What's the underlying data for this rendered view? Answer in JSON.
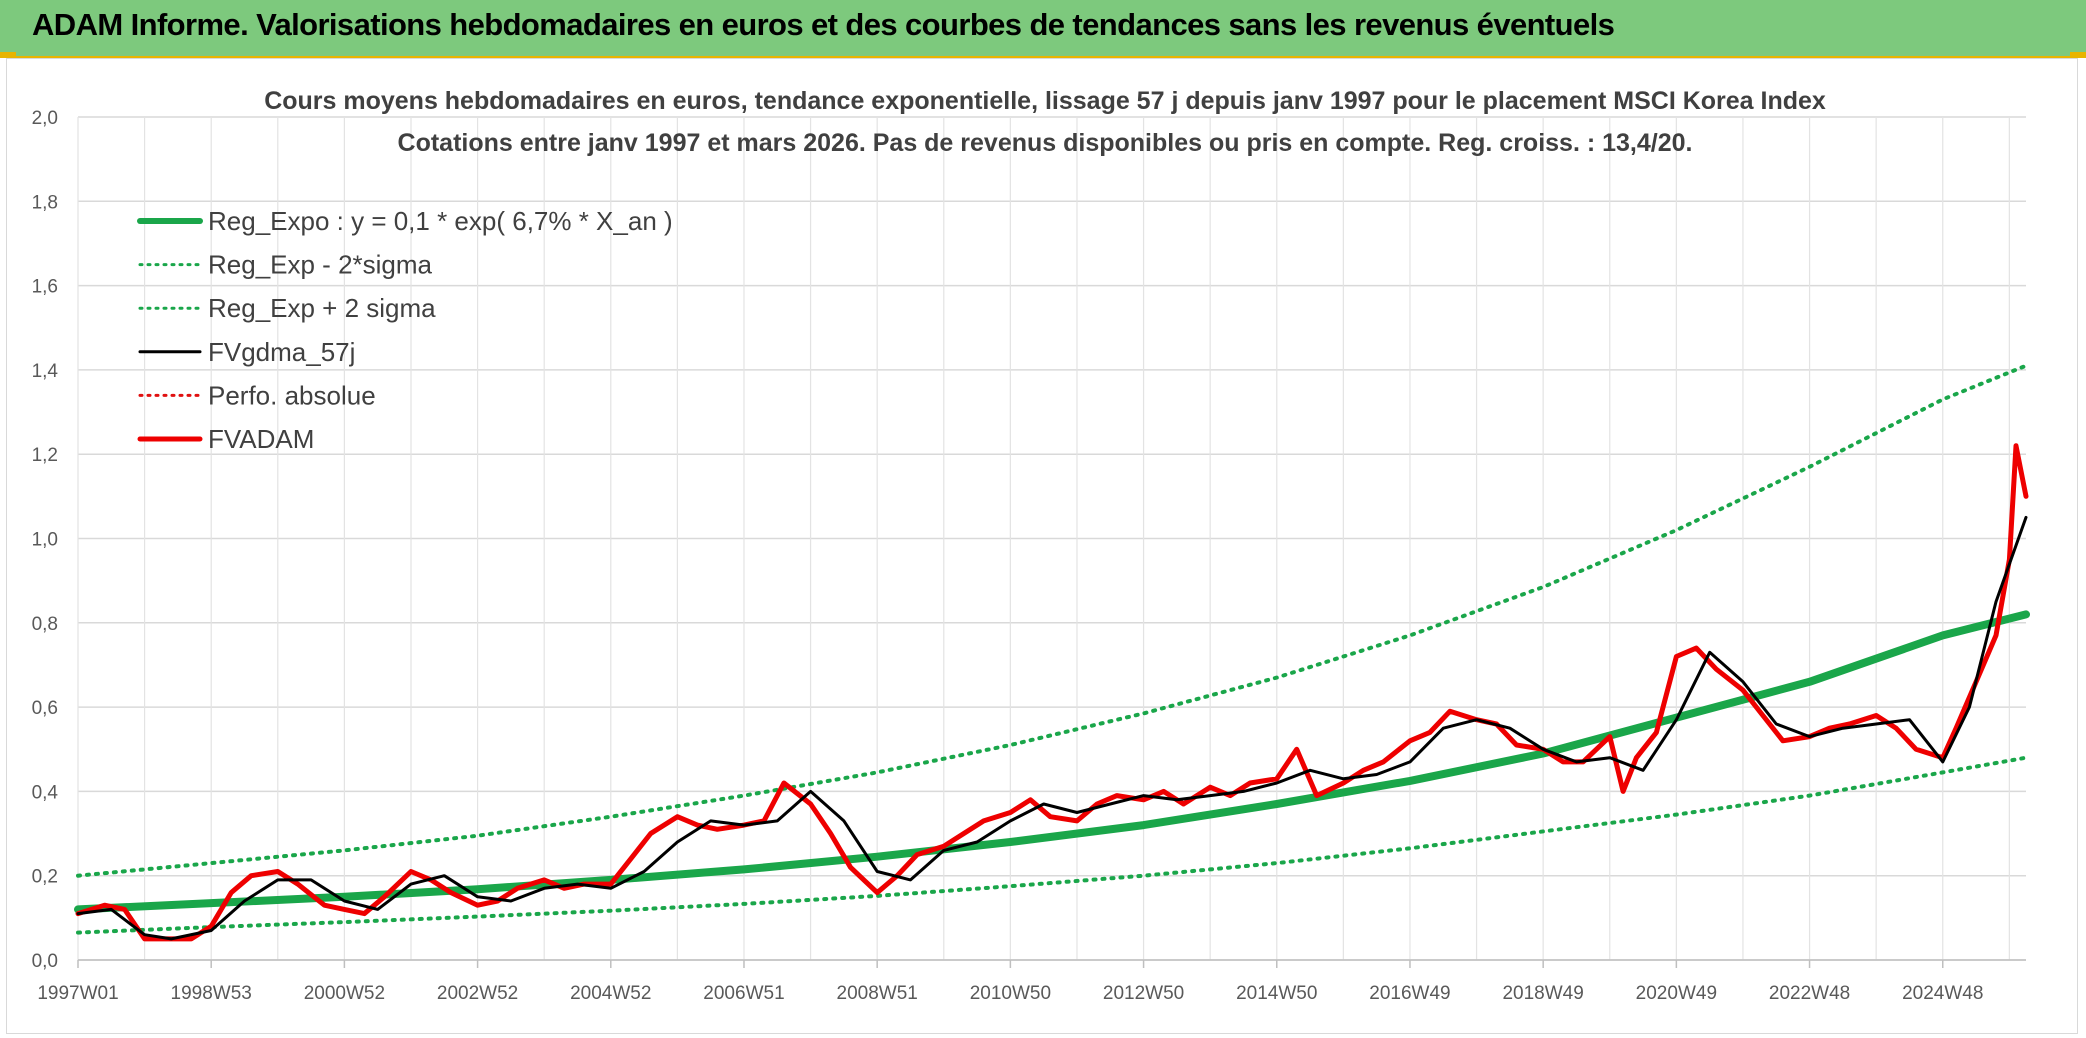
{
  "header": {
    "title": "ADAM Informe. Valorisations hebdomadaires en euros et des courbes de tendances sans les revenus éventuels",
    "background": "#7dc97d",
    "accent": "#e8b400"
  },
  "chart_data": {
    "type": "line",
    "title": "Cours moyens hebdomadaires en euros, tendance exponentielle, lissage 57 j depuis janv 1997 pour le placement MSCI Korea Index",
    "subtitle": "Cotations entre janv 1997 et mars 2026. Pas de revenus disponibles ou pris en compte. Reg. croiss. : 13,4/20.",
    "xlabel": "",
    "ylabel": "",
    "ylim": [
      0,
      2.0
    ],
    "xlim": [
      1997.0,
      2026.25
    ],
    "y_ticks": [
      "0,0",
      "0,2",
      "0,4",
      "0,6",
      "0,8",
      "1,0",
      "1,2",
      "1,4",
      "1,6",
      "1,8",
      "2,0"
    ],
    "x_ticks": [
      {
        "label": "1997W01",
        "x": 1997.0
      },
      {
        "label": "1998W53",
        "x": 1999.0
      },
      {
        "label": "2000W52",
        "x": 2001.0
      },
      {
        "label": "2002W52",
        "x": 2003.0
      },
      {
        "label": "2004W52",
        "x": 2005.0
      },
      {
        "label": "2006W51",
        "x": 2007.0
      },
      {
        "label": "2008W51",
        "x": 2009.0
      },
      {
        "label": "2010W50",
        "x": 2011.0
      },
      {
        "label": "2012W50",
        "x": 2013.0
      },
      {
        "label": "2014W50",
        "x": 2015.0
      },
      {
        "label": "2016W49",
        "x": 2017.0
      },
      {
        "label": "2018W49",
        "x": 2019.0
      },
      {
        "label": "2020W49",
        "x": 2021.0
      },
      {
        "label": "2022W48",
        "x": 2023.0
      },
      {
        "label": "2024W48",
        "x": 2025.0
      }
    ],
    "grid": true,
    "legend_position": "top-left",
    "series": [
      {
        "name": "Reg_Expo : y = 0,1 * exp( 6,7% *  X_an )",
        "color": "#1aa64a",
        "style": "solid",
        "width": 8,
        "x": [
          1997,
          1999,
          2001,
          2003,
          2005,
          2007,
          2009,
          2011,
          2013,
          2015,
          2017,
          2019,
          2021,
          2023,
          2025,
          2026.25
        ],
        "y": [
          0.12,
          0.135,
          0.15,
          0.168,
          0.19,
          0.215,
          0.245,
          0.28,
          0.32,
          0.37,
          0.425,
          0.49,
          0.575,
          0.66,
          0.77,
          0.82
        ]
      },
      {
        "name": "Reg_Exp - 2*sigma",
        "color": "#1aa64a",
        "style": "dotted",
        "width": 4,
        "x": [
          1997,
          1999,
          2001,
          2003,
          2005,
          2007,
          2009,
          2011,
          2013,
          2015,
          2017,
          2019,
          2021,
          2023,
          2025,
          2026.25
        ],
        "y": [
          0.065,
          0.078,
          0.09,
          0.103,
          0.117,
          0.133,
          0.152,
          0.175,
          0.2,
          0.23,
          0.265,
          0.305,
          0.345,
          0.39,
          0.445,
          0.48
        ]
      },
      {
        "name": "Reg_Exp + 2 sigma",
        "color": "#1aa64a",
        "style": "dotted",
        "width": 4,
        "x": [
          1997,
          1999,
          2001,
          2003,
          2005,
          2007,
          2009,
          2011,
          2013,
          2015,
          2017,
          2019,
          2021,
          2023,
          2025,
          2026.25
        ],
        "y": [
          0.2,
          0.23,
          0.26,
          0.295,
          0.34,
          0.39,
          0.445,
          0.51,
          0.585,
          0.67,
          0.77,
          0.885,
          1.02,
          1.17,
          1.33,
          1.41
        ]
      },
      {
        "name": "FVgdma_57j",
        "color": "#000000",
        "style": "solid",
        "width": 3,
        "x": [
          1997,
          1997.5,
          1998.0,
          1998.4,
          1999.0,
          1999.5,
          2000.0,
          2000.5,
          2001.0,
          2001.5,
          2002.0,
          2002.5,
          2003.0,
          2003.5,
          2004.0,
          2004.5,
          2005.0,
          2005.5,
          2006.0,
          2006.5,
          2007.0,
          2007.5,
          2008.0,
          2008.5,
          2009.0,
          2009.5,
          2010.0,
          2010.5,
          2011.0,
          2011.5,
          2012.0,
          2012.5,
          2013.0,
          2013.5,
          2014.0,
          2014.5,
          2015.0,
          2015.5,
          2016.0,
          2016.5,
          2017.0,
          2017.5,
          2018.0,
          2018.5,
          2019.0,
          2019.5,
          2020.0,
          2020.5,
          2021.0,
          2021.5,
          2022.0,
          2022.5,
          2023.0,
          2023.5,
          2024.0,
          2024.5,
          2025.0,
          2025.4,
          2025.8,
          2026.25
        ],
        "y": [
          0.11,
          0.12,
          0.06,
          0.05,
          0.07,
          0.14,
          0.19,
          0.19,
          0.14,
          0.12,
          0.18,
          0.2,
          0.15,
          0.14,
          0.17,
          0.18,
          0.17,
          0.21,
          0.28,
          0.33,
          0.32,
          0.33,
          0.4,
          0.33,
          0.21,
          0.19,
          0.26,
          0.28,
          0.33,
          0.37,
          0.35,
          0.37,
          0.39,
          0.38,
          0.39,
          0.4,
          0.42,
          0.45,
          0.43,
          0.44,
          0.47,
          0.55,
          0.57,
          0.55,
          0.5,
          0.47,
          0.48,
          0.45,
          0.57,
          0.73,
          0.66,
          0.56,
          0.53,
          0.55,
          0.56,
          0.57,
          0.47,
          0.6,
          0.85,
          1.05
        ]
      },
      {
        "name": "Perfo. absolue",
        "color": "#e01010",
        "style": "dotted",
        "width": 3,
        "x": [],
        "y": []
      },
      {
        "name": "FVADAM",
        "color": "#ee0000",
        "style": "solid",
        "width": 5,
        "x": [
          1997,
          1997.4,
          1997.7,
          1998.0,
          1998.3,
          1998.7,
          1999.0,
          1999.3,
          1999.6,
          2000.0,
          2000.3,
          2000.7,
          2001.0,
          2001.3,
          2001.6,
          2002.0,
          2002.3,
          2002.6,
          2003.0,
          2003.3,
          2003.6,
          2004.0,
          2004.3,
          2004.6,
          2005.0,
          2005.3,
          2005.6,
          2006.0,
          2006.3,
          2006.6,
          2007.0,
          2007.3,
          2007.6,
          2008.0,
          2008.3,
          2008.6,
          2009.0,
          2009.3,
          2009.6,
          2010.0,
          2010.3,
          2010.6,
          2011.0,
          2011.3,
          2011.6,
          2012.0,
          2012.3,
          2012.6,
          2013.0,
          2013.3,
          2013.6,
          2014.0,
          2014.3,
          2014.6,
          2015.0,
          2015.3,
          2015.6,
          2016.0,
          2016.3,
          2016.6,
          2017.0,
          2017.3,
          2017.6,
          2018.0,
          2018.3,
          2018.6,
          2019.0,
          2019.3,
          2019.6,
          2020.0,
          2020.2,
          2020.4,
          2020.7,
          2021.0,
          2021.3,
          2021.6,
          2022.0,
          2022.3,
          2022.6,
          2023.0,
          2023.3,
          2023.6,
          2024.0,
          2024.3,
          2024.6,
          2025.0,
          2025.2,
          2025.5,
          2025.8,
          2026.0,
          2026.1,
          2026.25
        ],
        "y": [
          0.11,
          0.13,
          0.12,
          0.05,
          0.05,
          0.05,
          0.08,
          0.16,
          0.2,
          0.21,
          0.18,
          0.13,
          0.12,
          0.11,
          0.15,
          0.21,
          0.19,
          0.16,
          0.13,
          0.14,
          0.17,
          0.19,
          0.17,
          0.18,
          0.18,
          0.24,
          0.3,
          0.34,
          0.32,
          0.31,
          0.32,
          0.33,
          0.42,
          0.37,
          0.3,
          0.22,
          0.16,
          0.2,
          0.25,
          0.27,
          0.3,
          0.33,
          0.35,
          0.38,
          0.34,
          0.33,
          0.37,
          0.39,
          0.38,
          0.4,
          0.37,
          0.41,
          0.39,
          0.42,
          0.43,
          0.5,
          0.39,
          0.42,
          0.45,
          0.47,
          0.52,
          0.54,
          0.59,
          0.57,
          0.56,
          0.51,
          0.5,
          0.47,
          0.47,
          0.53,
          0.4,
          0.48,
          0.54,
          0.72,
          0.74,
          0.69,
          0.64,
          0.58,
          0.52,
          0.53,
          0.55,
          0.56,
          0.58,
          0.55,
          0.5,
          0.48,
          0.55,
          0.66,
          0.77,
          0.95,
          1.22,
          1.1
        ]
      }
    ]
  }
}
